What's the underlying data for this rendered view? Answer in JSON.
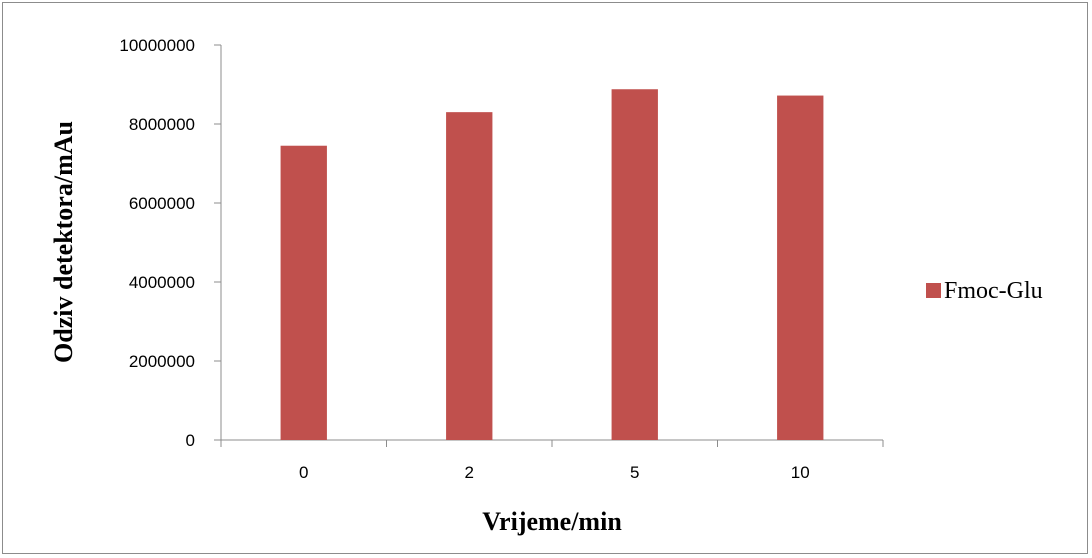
{
  "chart_data": {
    "type": "bar",
    "categories": [
      "0",
      "2",
      "5",
      "10"
    ],
    "series": [
      {
        "name": "Fmoc-Glu",
        "values": [
          7450000,
          8300000,
          8880000,
          8720000
        ],
        "color": "#C0504D"
      }
    ],
    "xlabel": "Vrijeme/min",
    "ylabel": "Odziv detektora/mAu",
    "ylim": [
      0,
      10000000
    ],
    "yticks": [
      "0",
      "2000000",
      "4000000",
      "6000000",
      "8000000",
      "10000000"
    ],
    "grid": false,
    "legend_position": "right"
  }
}
